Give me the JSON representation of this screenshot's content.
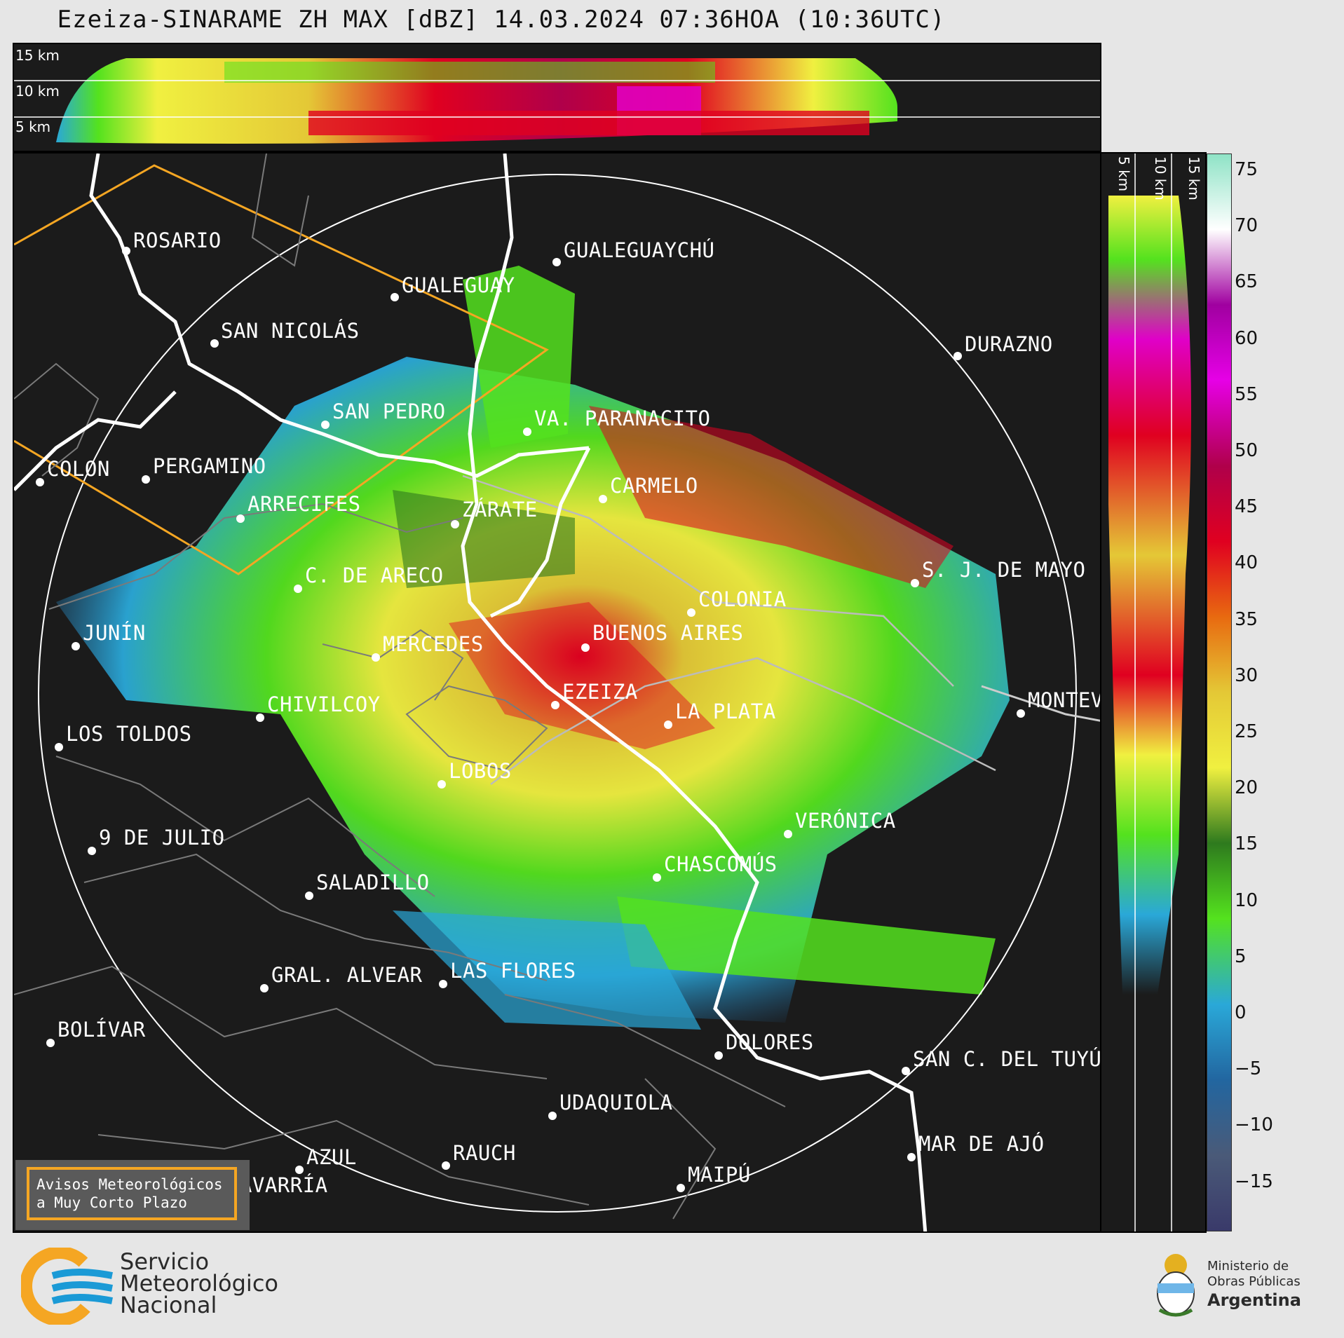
{
  "title": "Ezeiza-SINARAME ZH MAX [dBZ] 14.03.2024 07:36HOA (10:36UTC)",
  "height_labels": [
    "15 km",
    "10 km",
    "5 km"
  ],
  "side_height_labels": [
    "5 km",
    "10 km",
    "15 km"
  ],
  "colorbar": {
    "ticks": [
      "75",
      "70",
      "65",
      "60",
      "55",
      "50",
      "45",
      "40",
      "35",
      "30",
      "25",
      "20",
      "15",
      "10",
      "5",
      "0",
      "−5",
      "−10",
      "−15"
    ],
    "stops": [
      "#8fe3c6",
      "#ffffff",
      "#a000a0",
      "#e600e6",
      "#b0004a",
      "#e00020",
      "#e86a10",
      "#e4c836",
      "#f0f040",
      "#2e7a1e",
      "#54e21e",
      "#2aa8d8",
      "#2266a0",
      "#4a5a78",
      "#3a3a6a"
    ]
  },
  "cities": [
    {
      "name": "ROSARIO"
    },
    {
      "name": "GUALEGUAYCHÚ"
    },
    {
      "name": "GUALEGUAY"
    },
    {
      "name": "SAN NICOLÁS"
    },
    {
      "name": "DURAZNO"
    },
    {
      "name": "SAN PEDRO"
    },
    {
      "name": "VA. PARANACITO"
    },
    {
      "name": "PERGAMINO"
    },
    {
      "name": "COLON"
    },
    {
      "name": "CARMELO"
    },
    {
      "name": "ARRECIFES"
    },
    {
      "name": "ZÁRATE"
    },
    {
      "name": "S. J. DE MAYO"
    },
    {
      "name": "C. DE ARECO"
    },
    {
      "name": "COLONIA"
    },
    {
      "name": "BUENOS AIRES"
    },
    {
      "name": "JUNÍN"
    },
    {
      "name": "MERCEDES"
    },
    {
      "name": "EZEIZA"
    },
    {
      "name": "MONTEVIDEO"
    },
    {
      "name": "CHIVILCOY"
    },
    {
      "name": "LA PLATA"
    },
    {
      "name": "LOS TOLDOS"
    },
    {
      "name": "LOBOS"
    },
    {
      "name": "VERÓNICA"
    },
    {
      "name": "9 DE JULIO"
    },
    {
      "name": "CHASCOMÚS"
    },
    {
      "name": "SALADILLO"
    },
    {
      "name": "GRAL. ALVEAR"
    },
    {
      "name": "LAS FLORES"
    },
    {
      "name": "BOLÍVAR"
    },
    {
      "name": "DOLORES"
    },
    {
      "name": "SAN C. DEL TUYÚ"
    },
    {
      "name": "UDAQUIOLA"
    },
    {
      "name": "MAR DE AJÓ"
    },
    {
      "name": "AZUL"
    },
    {
      "name": "RAUCH"
    },
    {
      "name": "OLAVARRÍA"
    },
    {
      "name": "MAIPÚ"
    }
  ],
  "warning_box": {
    "line1": "Avisos Meteorológicos",
    "line2": "a Muy Corto Plazo"
  },
  "footer": {
    "smn": [
      "Servicio",
      "Meteorológico",
      "Nacional"
    ],
    "ministry": [
      "Ministerio de",
      "Obras Públicas",
      "Argentina"
    ]
  }
}
